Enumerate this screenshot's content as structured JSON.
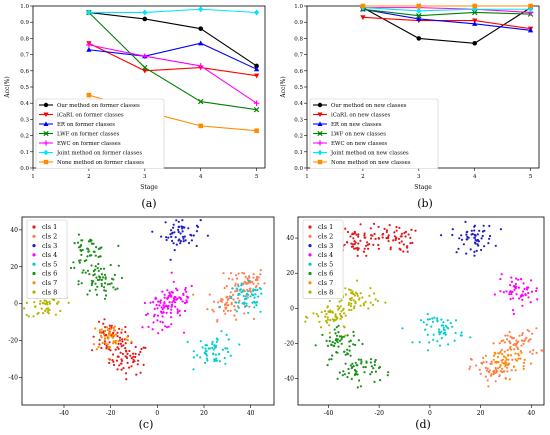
{
  "chart_data": [
    {
      "type": "line",
      "panel_label": "(a)",
      "xlabel": "Stage",
      "ylabel": "Acc(%)",
      "xlim": [
        1,
        5.15
      ],
      "ylim": [
        0,
        1.0
      ],
      "xticks": [
        1,
        2,
        3,
        4,
        5
      ],
      "yticks": [
        0.0,
        0.1,
        0.2,
        0.3,
        0.4,
        0.5,
        0.6,
        0.7,
        0.8,
        0.9,
        1.0
      ],
      "legend_position": "lower-left",
      "x": [
        2,
        3,
        4,
        5
      ],
      "series": [
        {
          "name": "Our method on former classes",
          "color": "#000000",
          "marker": "circle",
          "values": [
            0.96,
            0.92,
            0.86,
            0.63
          ]
        },
        {
          "name": "iCaRL on former classes",
          "color": "#ff0000",
          "marker": "triangle-down",
          "values": [
            0.77,
            0.6,
            0.62,
            0.57
          ]
        },
        {
          "name": "ER on former classes",
          "color": "#0000ff",
          "marker": "triangle-up",
          "values": [
            0.73,
            0.69,
            0.77,
            0.61
          ]
        },
        {
          "name": "LWF on former classes",
          "color": "#008000",
          "marker": "x",
          "values": [
            0.96,
            0.62,
            0.41,
            0.36
          ]
        },
        {
          "name": "EWC on former classes",
          "color": "#ff00ff",
          "marker": "plus",
          "values": [
            0.76,
            0.69,
            0.63,
            0.4
          ]
        },
        {
          "name": "Joint method on former classes",
          "color": "#00e5ff",
          "marker": "diamond",
          "values": [
            0.96,
            0.96,
            0.98,
            0.96
          ]
        },
        {
          "name": "None method on former classes",
          "color": "#ff8c00",
          "marker": "square",
          "values": [
            0.45,
            0.35,
            0.26,
            0.23
          ]
        }
      ]
    },
    {
      "type": "line",
      "panel_label": "(b)",
      "xlabel": "Stage",
      "ylabel": "Acc(%)",
      "xlim": [
        1,
        5.15
      ],
      "ylim": [
        0,
        1.0
      ],
      "xticks": [
        1,
        2,
        3,
        4,
        5
      ],
      "yticks": [
        0.0,
        0.1,
        0.2,
        0.3,
        0.4,
        0.5,
        0.6,
        0.7,
        0.8,
        0.9,
        1.0
      ],
      "legend_position": "lower-left",
      "x": [
        2,
        3,
        4,
        5
      ],
      "series": [
        {
          "name": "Our method on new classes",
          "color": "#000000",
          "marker": "circle",
          "values": [
            0.99,
            0.8,
            0.77,
            0.99
          ]
        },
        {
          "name": "iCaRL on new classes",
          "color": "#ff0000",
          "marker": "triangle-down",
          "values": [
            0.93,
            0.91,
            0.91,
            0.86
          ]
        },
        {
          "name": "ER on new classes",
          "color": "#0000ff",
          "marker": "triangle-up",
          "values": [
            0.98,
            0.92,
            0.89,
            0.85
          ]
        },
        {
          "name": "LWF on new classes",
          "color": "#008000",
          "marker": "x",
          "values": [
            0.98,
            0.94,
            0.96,
            0.95
          ]
        },
        {
          "name": "EWC on new classes",
          "color": "#ff00ff",
          "marker": "plus",
          "values": [
            0.99,
            0.99,
            0.98,
            0.96
          ]
        },
        {
          "name": "Joint method on new classes",
          "color": "#00e5ff",
          "marker": "diamond",
          "values": [
            0.99,
            0.97,
            0.98,
            0.98
          ]
        },
        {
          "name": "None method on new classes",
          "color": "#ff8c00",
          "marker": "square",
          "values": [
            1.0,
            1.0,
            1.0,
            1.0
          ]
        }
      ]
    },
    {
      "type": "scatter",
      "panel_label": "(c)",
      "xlim": [
        -58,
        50
      ],
      "ylim": [
        -55,
        47
      ],
      "xticks": [
        -40,
        -20,
        0,
        20,
        40
      ],
      "yticks": [
        -40,
        -20,
        0,
        20,
        40
      ],
      "legend_position": "top-left",
      "series": [
        {
          "name": "cls 1",
          "color": "#e31a1c",
          "clusters": [
            [
              -12,
              -30
            ],
            [
              -20,
              -19
            ]
          ]
        },
        {
          "name": "cls 2",
          "color": "#ff7f50",
          "clusters": [
            [
              38,
              12
            ],
            [
              30,
              0
            ]
          ]
        },
        {
          "name": "cls 3",
          "color": "#1f1fbf",
          "clusters": [
            [
              10,
              38
            ]
          ]
        },
        {
          "name": "cls 4",
          "color": "#ff00ff",
          "clusters": [
            [
              2,
              -5
            ],
            [
              8,
              3
            ]
          ]
        },
        {
          "name": "cls 5",
          "color": "#00cdcd",
          "clusters": [
            [
              38,
              2
            ],
            [
              25,
              -25
            ]
          ]
        },
        {
          "name": "cls 6",
          "color": "#1a8f1a",
          "clusters": [
            [
              -30,
              28
            ],
            [
              -25,
              12
            ]
          ]
        },
        {
          "name": "cls 7",
          "color": "#ff8c00",
          "clusters": [
            [
              -20,
              -18
            ]
          ]
        },
        {
          "name": "cls 8",
          "color": "#b5b500",
          "clusters": [
            [
              -48,
              0
            ]
          ]
        }
      ]
    },
    {
      "type": "scatter",
      "panel_label": "(d)",
      "xlim": [
        -52,
        45
      ],
      "ylim": [
        -55,
        52
      ],
      "xticks": [
        -40,
        -20,
        0,
        20,
        40
      ],
      "yticks": [
        -40,
        -20,
        0,
        20,
        40
      ],
      "legend_position": "top-left",
      "series": [
        {
          "name": "cls 1",
          "color": "#e31a1c",
          "clusters": [
            [
              -30,
              38
            ],
            [
              -15,
              40
            ]
          ]
        },
        {
          "name": "cls 2",
          "color": "#ff7f50",
          "clusters": [
            [
              25,
              -35
            ],
            [
              35,
              -20
            ]
          ]
        },
        {
          "name": "cls 3",
          "color": "#1f1fbf",
          "clusters": [
            [
              17,
              40
            ]
          ]
        },
        {
          "name": "cls 4",
          "color": "#ff00ff",
          "clusters": [
            [
              35,
              10
            ]
          ]
        },
        {
          "name": "cls 5",
          "color": "#00cdcd",
          "clusters": [
            [
              5,
              -12
            ]
          ]
        },
        {
          "name": "cls 6",
          "color": "#1a8f1a",
          "clusters": [
            [
              -35,
              -20
            ],
            [
              -28,
              -35
            ]
          ]
        },
        {
          "name": "cls 7",
          "color": "#ff8c00",
          "clusters": [
            [
              30,
              -30
            ]
          ]
        },
        {
          "name": "cls 8",
          "color": "#b5b500",
          "clusters": [
            [
              -38,
              -5
            ],
            [
              -30,
              5
            ]
          ]
        }
      ]
    }
  ]
}
